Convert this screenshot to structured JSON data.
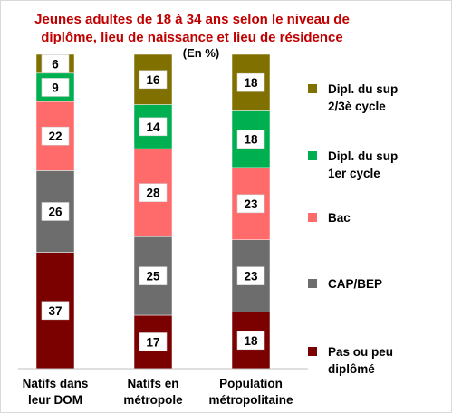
{
  "chart_data": {
    "type": "bar",
    "stacked": true,
    "title_line1": "Jeunes  adultes de  18 à 34 ans  selon le niveau de",
    "title_line2": "diplôme, lieu de naissance et lieu de résidence",
    "unit": "(En %)",
    "categories": [
      [
        "Natifs dans",
        "leur DOM"
      ],
      [
        "Natifs en",
        "métropole"
      ],
      [
        "Population",
        "métropolitaine"
      ]
    ],
    "series": [
      {
        "name": [
          "Pas ou peu",
          "diplômé"
        ],
        "color": "#7b0000",
        "values": [
          37,
          17,
          18
        ]
      },
      {
        "name": [
          "CAP/BEP"
        ],
        "color": "#6d6d6d",
        "values": [
          26,
          25,
          23
        ]
      },
      {
        "name": [
          "Bac"
        ],
        "color": "#ff6b6b",
        "values": [
          22,
          28,
          23
        ]
      },
      {
        "name": [
          "Dipl. du sup",
          "1er cycle"
        ],
        "color": "#00b050",
        "values": [
          9,
          14,
          18
        ]
      },
      {
        "name": [
          "Dipl. du sup",
          "2/3è cycle"
        ],
        "color": "#807000",
        "values": [
          6,
          16,
          18
        ]
      }
    ],
    "ylim": [
      0,
      100
    ],
    "grid": false,
    "legend_position": "right"
  }
}
